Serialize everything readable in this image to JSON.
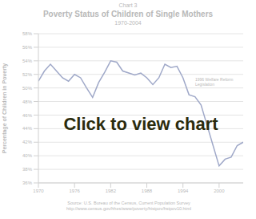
{
  "chart_data": {
    "type": "line",
    "label": "Chart 3",
    "title": "Poverty Status of Children of Single Mothers",
    "subtitle": "1970-2004",
    "y_label": "Percentage of Children in Poverty",
    "annotation": "1996 Welfare Reform Legislation",
    "source": [
      "Source: U.S. Bureau of the Census, Current Population Survey",
      "http://www.census.gov/hhes/www/poverty/histpov/hstpov10.html"
    ],
    "overlay": "Click to view chart",
    "x": [
      1970,
      1971,
      1972,
      1973,
      1974,
      1975,
      1976,
      1977,
      1978,
      1979,
      1980,
      1981,
      1982,
      1983,
      1984,
      1985,
      1986,
      1987,
      1988,
      1989,
      1990,
      1991,
      1992,
      1993,
      1994,
      1995,
      1996,
      1997,
      1998,
      1999,
      2000,
      2001,
      2002,
      2003,
      2004
    ],
    "series": [
      {
        "name": "Children of Single Mothers",
        "color": "#9fa8c8",
        "values": [
          51,
          52.5,
          53.5,
          52.5,
          51.5,
          51,
          52,
          51.5,
          50,
          48.6,
          50.8,
          52.3,
          54,
          53.8,
          52.5,
          52.2,
          51.9,
          52.2,
          51.5,
          50.5,
          51.5,
          53.5,
          53,
          53.2,
          51.5,
          49,
          48.7,
          47.5,
          44.5,
          41.5,
          38.5,
          39.5,
          39.8,
          41.5,
          42
        ]
      }
    ],
    "xlim": [
      1970,
      2004
    ],
    "xticks": [
      1970,
      1976,
      1982,
      1988,
      1994,
      2000
    ],
    "ylim": [
      36,
      58
    ],
    "yticks": [
      {
        "value": 36,
        "label": "36%"
      },
      {
        "value": 38,
        "label": "38%"
      },
      {
        "value": 40,
        "label": "40%"
      },
      {
        "value": 42,
        "label": "42%"
      },
      {
        "value": 44,
        "label": "44%"
      },
      {
        "value": 46,
        "label": "46%"
      },
      {
        "value": 48,
        "label": "48%"
      },
      {
        "value": 50,
        "label": "50%"
      },
      {
        "value": 52,
        "label": "52%"
      },
      {
        "value": 54,
        "label": "54%"
      },
      {
        "value": 56,
        "label": "56%"
      },
      {
        "value": 58,
        "label": "58%"
      }
    ],
    "grid": true,
    "marker": "none",
    "line_style": "solid"
  }
}
